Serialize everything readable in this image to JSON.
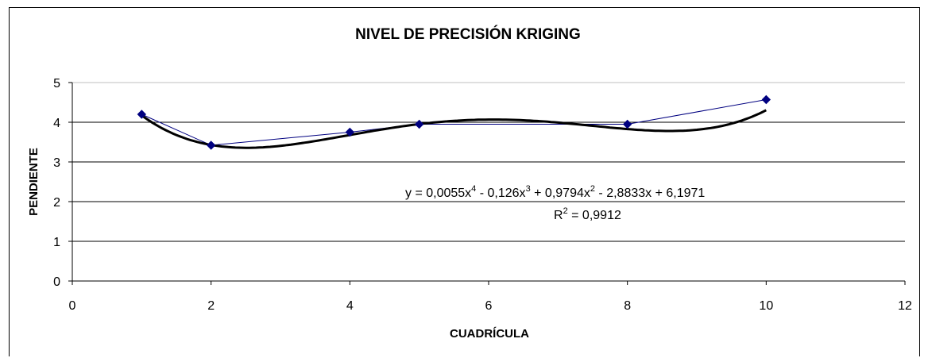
{
  "chart_data": {
    "type": "scatter",
    "title": "NIVEL DE PRECISIÓN KRIGING",
    "xlabel": "CUADRÍCULA",
    "ylabel": "PENDIENTE",
    "xlim": [
      0,
      12
    ],
    "ylim": [
      0,
      5
    ],
    "xticks": [
      "0",
      "2",
      "4",
      "6",
      "8",
      "10",
      "12"
    ],
    "yticks": [
      "0",
      "1",
      "2",
      "3",
      "4",
      "5"
    ],
    "grid": "horizontal",
    "series": [
      {
        "x": [
          1,
          2,
          4,
          5,
          8,
          10
        ],
        "y": [
          4.2,
          3.42,
          3.75,
          3.95,
          3.95,
          4.57
        ],
        "color": "#000080",
        "marker": "diamond"
      }
    ],
    "trendline": {
      "type": "polynomial",
      "order": 4,
      "coefficients": [
        0.0055,
        -0.126,
        0.9794,
        -2.8833,
        6.1971
      ],
      "color": "#000000",
      "equation": {
        "prefix": "y = 0,0055x",
        "exp1": "4",
        "mid1": " - 0,126x",
        "exp2": "3",
        "mid2": " + 0,9794x",
        "exp3": "2",
        "suffix": " - 2,8833x + 6,1971"
      },
      "r2": {
        "prefix": "R",
        "exp": "2",
        "suffix": " = 0,9912"
      }
    }
  }
}
